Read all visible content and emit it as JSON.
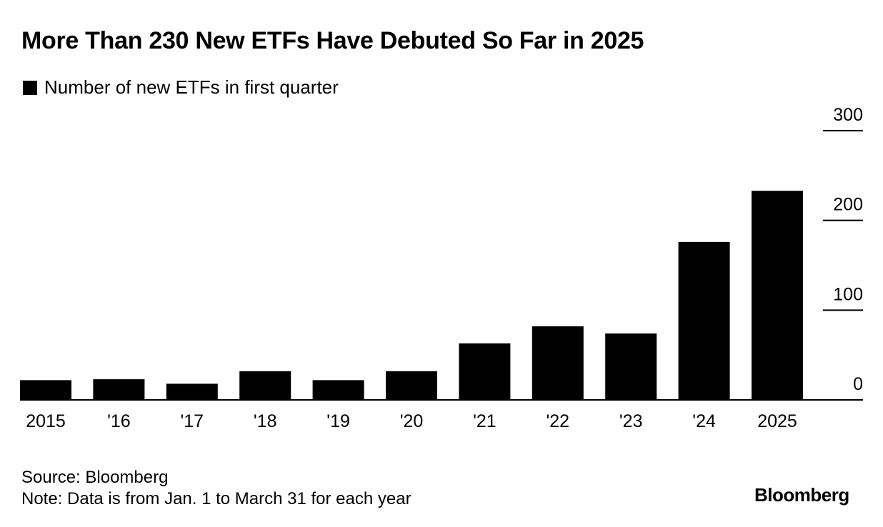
{
  "header": {
    "title": "More Than 230 New ETFs Have Debuted So Far in 2025"
  },
  "legend": {
    "label": "Number of new ETFs in first quarter",
    "color": "#000000"
  },
  "footer": {
    "source": "Source: Bloomberg",
    "note": "Note: Data is from Jan. 1 to March 31 for each year"
  },
  "brand": {
    "label": "Bloomberg"
  },
  "chart_data": {
    "type": "bar",
    "categories": [
      "2015",
      "'16",
      "'17",
      "'18",
      "'19",
      "'20",
      "'21",
      "'22",
      "'23",
      "'24",
      "2025"
    ],
    "values": [
      22,
      23,
      18,
      32,
      22,
      32,
      63,
      82,
      74,
      176,
      233
    ],
    "ylim": [
      0,
      300
    ],
    "yticks": [
      0,
      100,
      200,
      300
    ],
    "y_axis_position": "right",
    "grid": false,
    "bar_color": "#000000",
    "title": "More Than 230 New ETFs Have Debuted So Far in 2025",
    "xlabel": "",
    "ylabel": ""
  }
}
